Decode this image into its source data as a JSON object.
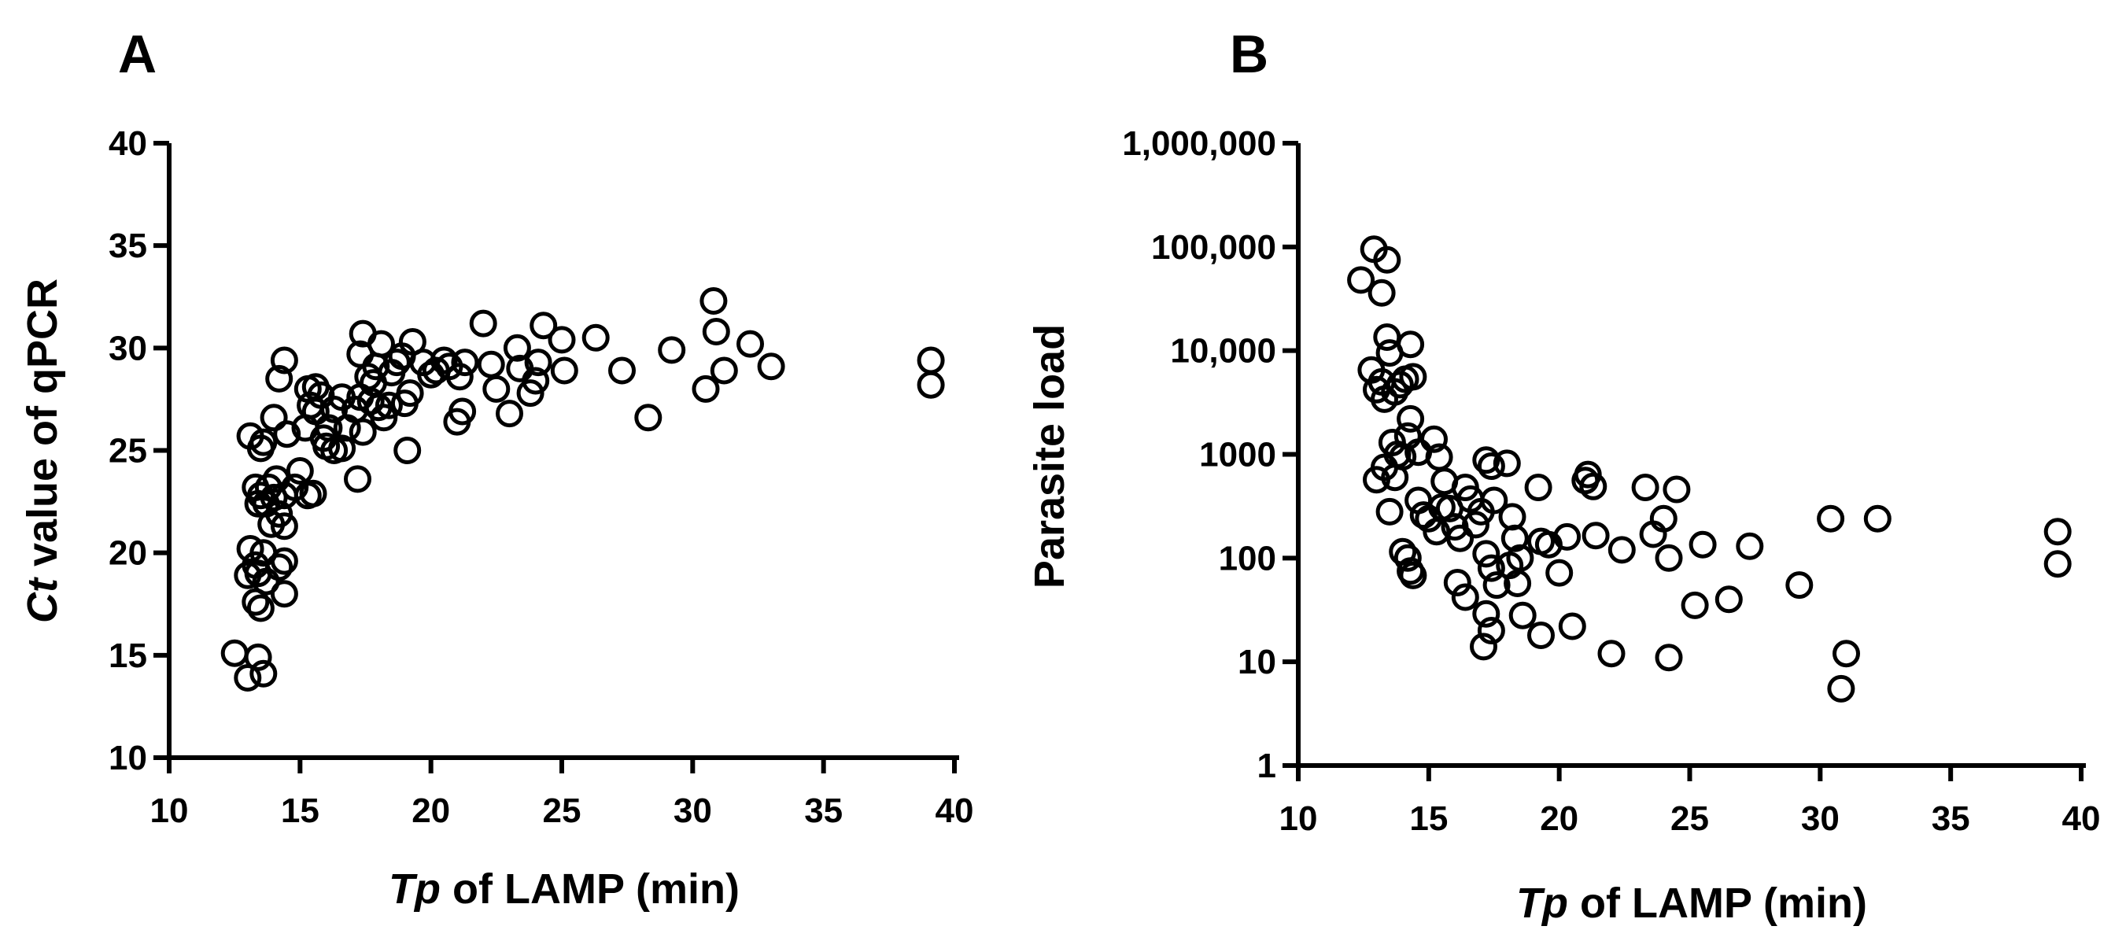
{
  "chart_data": [
    {
      "panel": "A",
      "type": "scatter",
      "xlabel_italic": "Tp",
      "xlabel_rest": " of LAMP (min)",
      "ylabel_italic": "Ct",
      "ylabel_rest": " value of qPCR",
      "xlim": [
        10,
        40
      ],
      "ylim": [
        10,
        40
      ],
      "xticks": [
        "10",
        "15",
        "20",
        "25",
        "30",
        "35",
        "40"
      ],
      "yticks": [
        "10",
        "15",
        "20",
        "25",
        "30",
        "35",
        "40"
      ],
      "yscale": "linear",
      "marker": "open-circle",
      "points": [
        [
          12.5,
          15.1
        ],
        [
          13.0,
          13.9
        ],
        [
          13.4,
          14.9
        ],
        [
          13.6,
          14.1
        ],
        [
          13.0,
          18.9
        ],
        [
          13.3,
          17.6
        ],
        [
          13.5,
          17.3
        ],
        [
          13.1,
          20.2
        ],
        [
          13.3,
          19.4
        ],
        [
          13.6,
          20.0
        ],
        [
          13.4,
          19.0
        ],
        [
          13.7,
          18.6
        ],
        [
          14.2,
          19.3
        ],
        [
          14.4,
          19.6
        ],
        [
          14.4,
          18.0
        ],
        [
          13.1,
          25.7
        ],
        [
          13.5,
          25.1
        ],
        [
          13.6,
          25.4
        ],
        [
          13.3,
          23.2
        ],
        [
          13.5,
          22.8
        ],
        [
          13.8,
          23.2
        ],
        [
          13.4,
          22.4
        ],
        [
          13.7,
          22.4
        ],
        [
          14.0,
          22.7
        ],
        [
          14.2,
          21.9
        ],
        [
          14.4,
          21.3
        ],
        [
          13.9,
          21.4
        ],
        [
          14.1,
          23.6
        ],
        [
          14.4,
          22.8
        ],
        [
          14.0,
          26.6
        ],
        [
          14.2,
          28.5
        ],
        [
          14.4,
          29.4
        ],
        [
          14.5,
          25.8
        ],
        [
          14.8,
          23.2
        ],
        [
          15.0,
          24.0
        ],
        [
          15.3,
          22.8
        ],
        [
          15.5,
          22.9
        ],
        [
          15.2,
          26.1
        ],
        [
          15.4,
          27.2
        ],
        [
          15.6,
          26.9
        ],
        [
          15.3,
          28.0
        ],
        [
          15.6,
          28.1
        ],
        [
          15.8,
          27.7
        ],
        [
          15.9,
          25.6
        ],
        [
          16.1,
          26.1
        ],
        [
          16.3,
          27.0
        ],
        [
          16.6,
          27.6
        ],
        [
          16.0,
          25.2
        ],
        [
          16.3,
          25.0
        ],
        [
          16.6,
          25.1
        ],
        [
          16.8,
          26.1
        ],
        [
          17.1,
          27.0
        ],
        [
          17.3,
          27.6
        ],
        [
          17.2,
          23.6
        ],
        [
          17.4,
          25.9
        ],
        [
          17.3,
          29.7
        ],
        [
          17.4,
          30.7
        ],
        [
          17.6,
          28.6
        ],
        [
          17.8,
          28.3
        ],
        [
          17.7,
          27.4
        ],
        [
          18.0,
          27.1
        ],
        [
          18.2,
          26.6
        ],
        [
          18.4,
          27.2
        ],
        [
          17.9,
          29.1
        ],
        [
          18.1,
          30.2
        ],
        [
          18.5,
          28.8
        ],
        [
          18.7,
          29.3
        ],
        [
          18.9,
          29.6
        ],
        [
          19.0,
          27.3
        ],
        [
          19.2,
          27.8
        ],
        [
          19.3,
          30.3
        ],
        [
          19.1,
          25.0
        ],
        [
          19.7,
          29.3
        ],
        [
          20.0,
          28.7
        ],
        [
          20.2,
          28.9
        ],
        [
          20.5,
          29.4
        ],
        [
          20.7,
          29.1
        ],
        [
          21.0,
          26.4
        ],
        [
          21.2,
          26.9
        ],
        [
          21.1,
          28.6
        ],
        [
          21.3,
          29.3
        ],
        [
          22.0,
          31.2
        ],
        [
          22.3,
          29.2
        ],
        [
          22.5,
          28.0
        ],
        [
          23.0,
          26.8
        ],
        [
          23.3,
          30.0
        ],
        [
          23.4,
          29.0
        ],
        [
          23.8,
          27.8
        ],
        [
          24.0,
          28.4
        ],
        [
          24.3,
          31.1
        ],
        [
          24.1,
          29.3
        ],
        [
          25.0,
          30.4
        ],
        [
          25.1,
          28.9
        ],
        [
          26.3,
          30.5
        ],
        [
          27.3,
          28.9
        ],
        [
          28.3,
          26.6
        ],
        [
          29.2,
          29.9
        ],
        [
          30.5,
          28.0
        ],
        [
          30.8,
          32.3
        ],
        [
          30.9,
          30.8
        ],
        [
          31.2,
          28.9
        ],
        [
          32.2,
          30.2
        ],
        [
          33.0,
          29.1
        ],
        [
          39.1,
          29.4
        ],
        [
          39.1,
          28.2
        ]
      ]
    },
    {
      "panel": "B",
      "type": "scatter",
      "xlabel_italic": "Tp",
      "xlabel_rest": " of LAMP (min)",
      "ylabel": "Parasite load",
      "xlim": [
        10,
        40
      ],
      "ylim": [
        1,
        1000000
      ],
      "xticks": [
        "10",
        "15",
        "20",
        "25",
        "30",
        "35",
        "40"
      ],
      "yticks": [
        "1",
        "10",
        "100",
        "1000",
        "10,000",
        "100,000",
        "1,000,000"
      ],
      "yscale": "log",
      "marker": "open-circle",
      "points": [
        [
          12.4,
          48000
        ],
        [
          12.9,
          95000
        ],
        [
          13.2,
          36000
        ],
        [
          13.4,
          75000
        ],
        [
          12.8,
          6500
        ],
        [
          13.0,
          4200
        ],
        [
          13.2,
          5000
        ],
        [
          13.3,
          3400
        ],
        [
          13.4,
          13500
        ],
        [
          13.5,
          9500
        ],
        [
          13.7,
          4000
        ],
        [
          13.9,
          4700
        ],
        [
          14.1,
          5300
        ],
        [
          14.3,
          11500
        ],
        [
          14.4,
          5600
        ],
        [
          13.0,
          570
        ],
        [
          13.3,
          750
        ],
        [
          13.5,
          280
        ],
        [
          13.6,
          1300
        ],
        [
          13.8,
          1000
        ],
        [
          14.0,
          950
        ],
        [
          14.2,
          1500
        ],
        [
          14.3,
          2200
        ],
        [
          14.6,
          1050
        ],
        [
          13.7,
          600
        ],
        [
          14.0,
          115
        ],
        [
          14.2,
          100
        ],
        [
          14.3,
          75
        ],
        [
          14.4,
          68
        ],
        [
          14.6,
          360
        ],
        [
          14.8,
          260
        ],
        [
          15.0,
          240
        ],
        [
          15.2,
          1400
        ],
        [
          15.4,
          940
        ],
        [
          15.6,
          550
        ],
        [
          15.3,
          180
        ],
        [
          15.5,
          310
        ],
        [
          15.8,
          300
        ],
        [
          16.0,
          200
        ],
        [
          16.2,
          155
        ],
        [
          16.4,
          480
        ],
        [
          16.6,
          370
        ],
        [
          16.8,
          210
        ],
        [
          16.1,
          58
        ],
        [
          16.4,
          42
        ],
        [
          17.0,
          280
        ],
        [
          17.2,
          880
        ],
        [
          17.4,
          770
        ],
        [
          17.5,
          360
        ],
        [
          17.2,
          110
        ],
        [
          17.4,
          80
        ],
        [
          17.6,
          55
        ],
        [
          17.2,
          29
        ],
        [
          17.4,
          20
        ],
        [
          17.1,
          14
        ],
        [
          18.0,
          820
        ],
        [
          18.2,
          250
        ],
        [
          18.3,
          155
        ],
        [
          18.5,
          100
        ],
        [
          18.1,
          85
        ],
        [
          18.4,
          57
        ],
        [
          18.6,
          28
        ],
        [
          19.2,
          480
        ],
        [
          19.3,
          145
        ],
        [
          19.6,
          135
        ],
        [
          19.3,
          18
        ],
        [
          20.0,
          72
        ],
        [
          20.3,
          160
        ],
        [
          20.5,
          22
        ],
        [
          21.0,
          560
        ],
        [
          21.1,
          640
        ],
        [
          21.3,
          490
        ],
        [
          21.4,
          165
        ],
        [
          22.0,
          12
        ],
        [
          22.4,
          120
        ],
        [
          23.3,
          480
        ],
        [
          23.6,
          170
        ],
        [
          24.0,
          240
        ],
        [
          24.2,
          100
        ],
        [
          24.2,
          11
        ],
        [
          24.5,
          460
        ],
        [
          25.2,
          35
        ],
        [
          25.5,
          135
        ],
        [
          26.5,
          40
        ],
        [
          27.3,
          130
        ],
        [
          29.2,
          55
        ],
        [
          30.4,
          240
        ],
        [
          30.8,
          5.5
        ],
        [
          31.0,
          12
        ],
        [
          32.2,
          240
        ],
        [
          39.1,
          180
        ],
        [
          39.1,
          88
        ]
      ]
    }
  ]
}
